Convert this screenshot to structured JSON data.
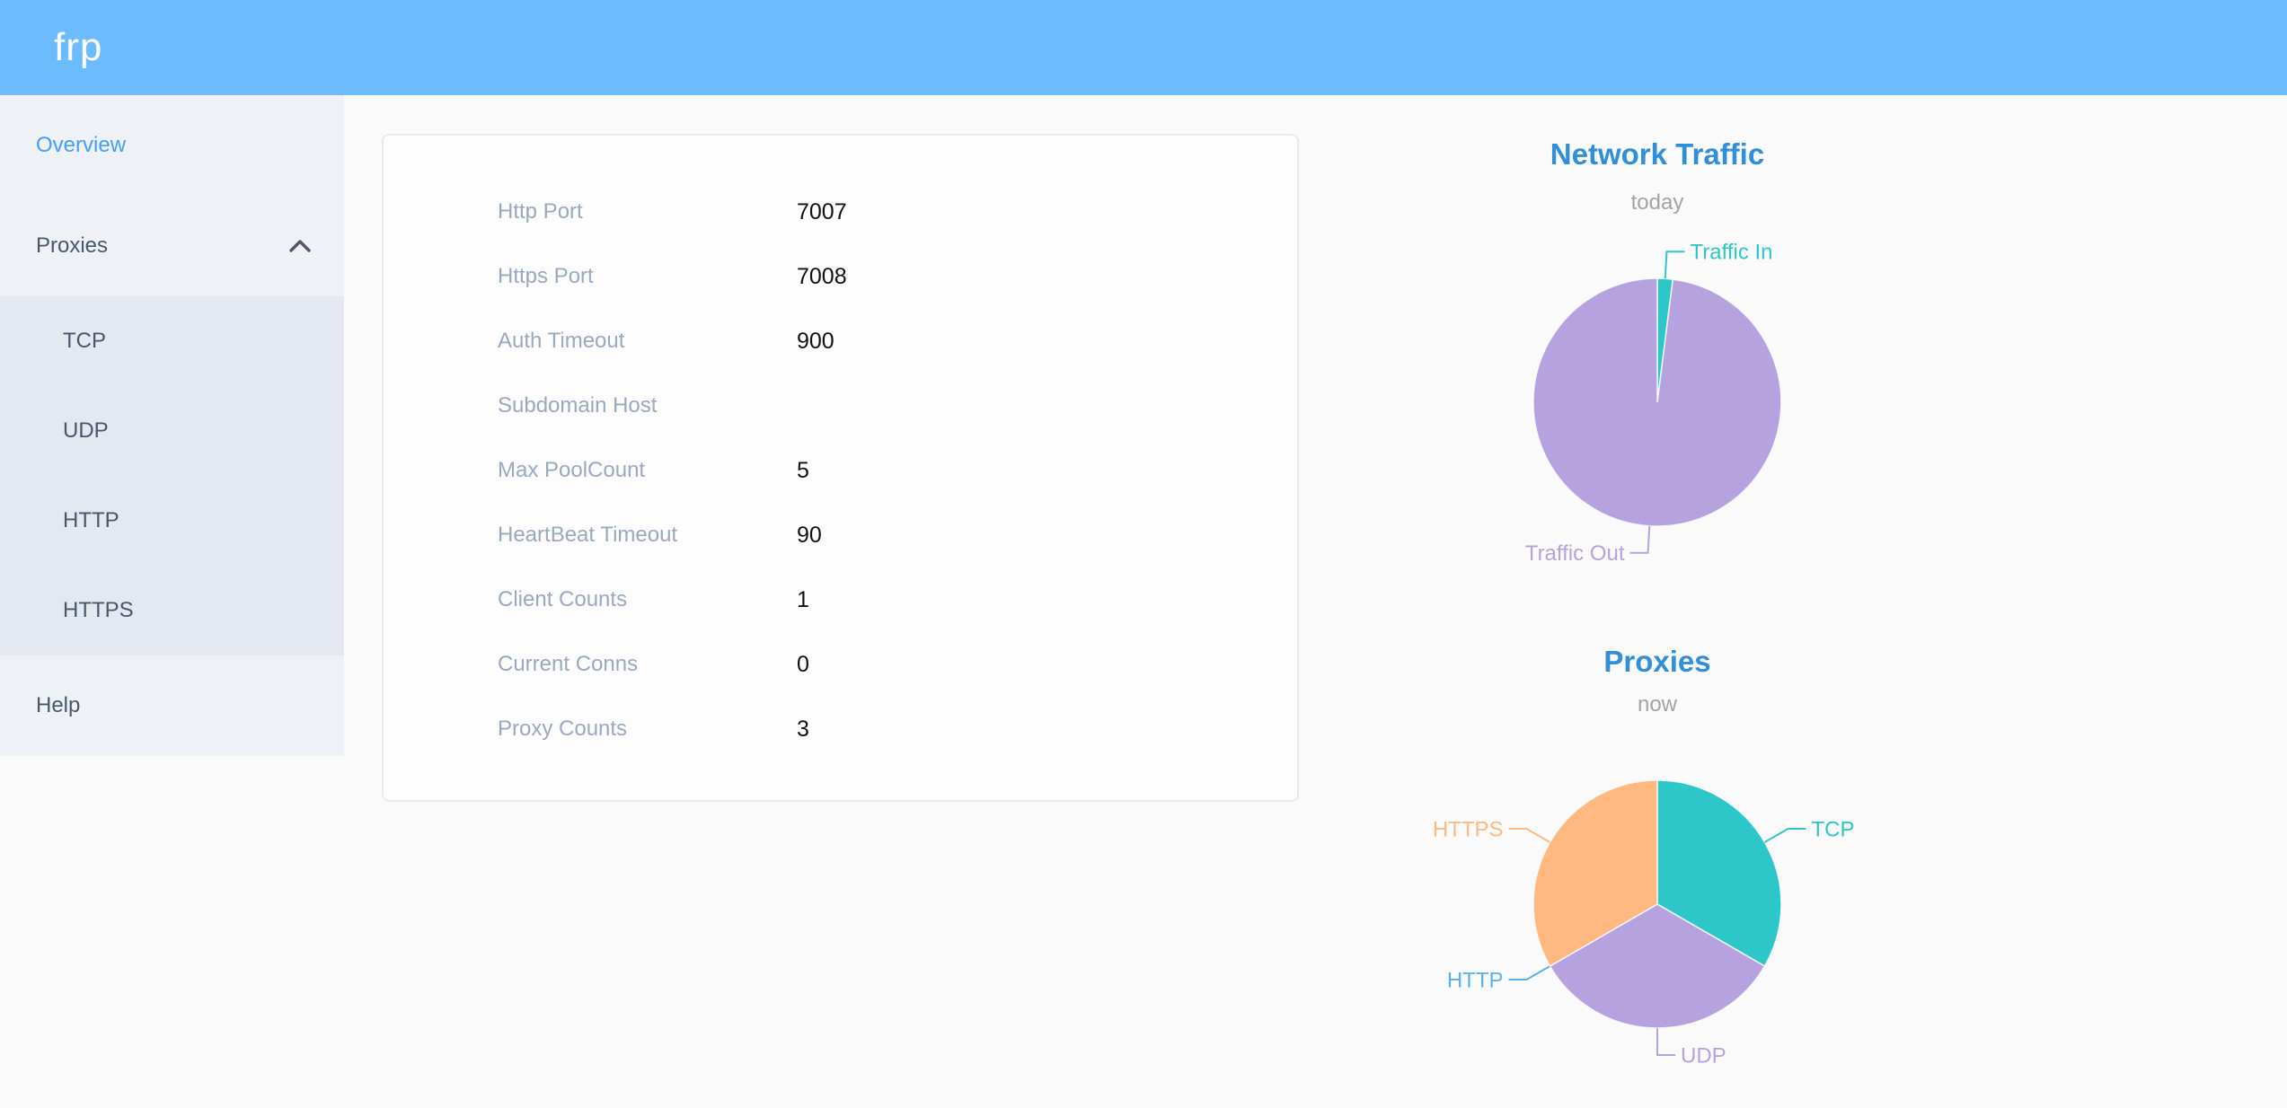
{
  "header": {
    "logo": "frp"
  },
  "sidebar": {
    "items": [
      {
        "id": "overview",
        "type": "item",
        "label": "Overview",
        "active": true
      },
      {
        "id": "proxies",
        "type": "group",
        "label": "Proxies",
        "expanded": true,
        "children": [
          {
            "id": "tcp",
            "label": "TCP"
          },
          {
            "id": "udp",
            "label": "UDP"
          },
          {
            "id": "http",
            "label": "HTTP"
          },
          {
            "id": "https",
            "label": "HTTPS"
          }
        ]
      },
      {
        "id": "help",
        "type": "item",
        "label": "Help",
        "active": false
      }
    ]
  },
  "server_info": {
    "rows": [
      {
        "label": "Http Port",
        "value": "7007"
      },
      {
        "label": "Https Port",
        "value": "7008"
      },
      {
        "label": "Auth Timeout",
        "value": "900"
      },
      {
        "label": "Subdomain Host",
        "value": ""
      },
      {
        "label": "Max PoolCount",
        "value": "5"
      },
      {
        "label": "HeartBeat Timeout",
        "value": "90"
      },
      {
        "label": "Client Counts",
        "value": "1"
      },
      {
        "label": "Current Conns",
        "value": "0"
      },
      {
        "label": "Proxy Counts",
        "value": "3"
      }
    ]
  },
  "colors": {
    "header_bg": "#6cbbfc",
    "sidebar_bg": "#eef1f6",
    "submenu_bg": "#e4e8f1",
    "active_item_blue": "#42a0fc",
    "chart_title_blue": "#2f8fd8",
    "teal": "#2ec7c9",
    "purple": "#b6a2de",
    "light_blue": "#5ab1ef",
    "orange": "#ffb980"
  },
  "chart_data": [
    {
      "type": "pie",
      "title": "Network Traffic",
      "subtitle": "today",
      "legend_position": "callout-labels",
      "values_are": "estimated_percent_of_circle",
      "slices": [
        {
          "label": "Traffic In",
          "value": 2,
          "color": "#2ec7c9"
        },
        {
          "label": "Traffic Out",
          "value": 98,
          "color": "#b6a2de"
        }
      ]
    },
    {
      "type": "pie",
      "title": "Proxies",
      "subtitle": "now",
      "legend_position": "callout-labels",
      "slices": [
        {
          "label": "TCP",
          "value": 1,
          "color": "#2ec7c9"
        },
        {
          "label": "UDP",
          "value": 1,
          "color": "#b6a2de"
        },
        {
          "label": "HTTP",
          "value": 0,
          "color": "#5ab1ef"
        },
        {
          "label": "HTTPS",
          "value": 1,
          "color": "#ffb980"
        }
      ]
    }
  ]
}
